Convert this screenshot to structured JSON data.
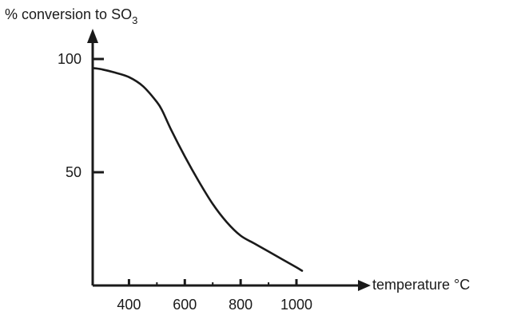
{
  "chart_data": {
    "type": "line",
    "title": "",
    "ylabel_main": "% conversion to SO",
    "ylabel_sub": "3",
    "xlabel": "temperature °C",
    "xlim": [
      270,
      1020
    ],
    "ylim": [
      0,
      100
    ],
    "x_ticks": [
      400,
      600,
      800,
      1000
    ],
    "x_minor_ticks": [
      500,
      700,
      900
    ],
    "y_ticks": [
      50,
      100
    ],
    "grid": false,
    "line_color": "#1a1a1a",
    "series": [
      {
        "x": [
          270,
          300,
          350,
          400,
          450,
          500,
          520,
          550,
          600,
          650,
          700,
          750,
          800,
          850,
          900,
          950,
          1000,
          1020
        ],
        "y": [
          96,
          95.5,
          94,
          92,
          88,
          81,
          77,
          69,
          57,
          46,
          36,
          28,
          22,
          18.5,
          15,
          11.5,
          8,
          6.5
        ]
      }
    ]
  }
}
